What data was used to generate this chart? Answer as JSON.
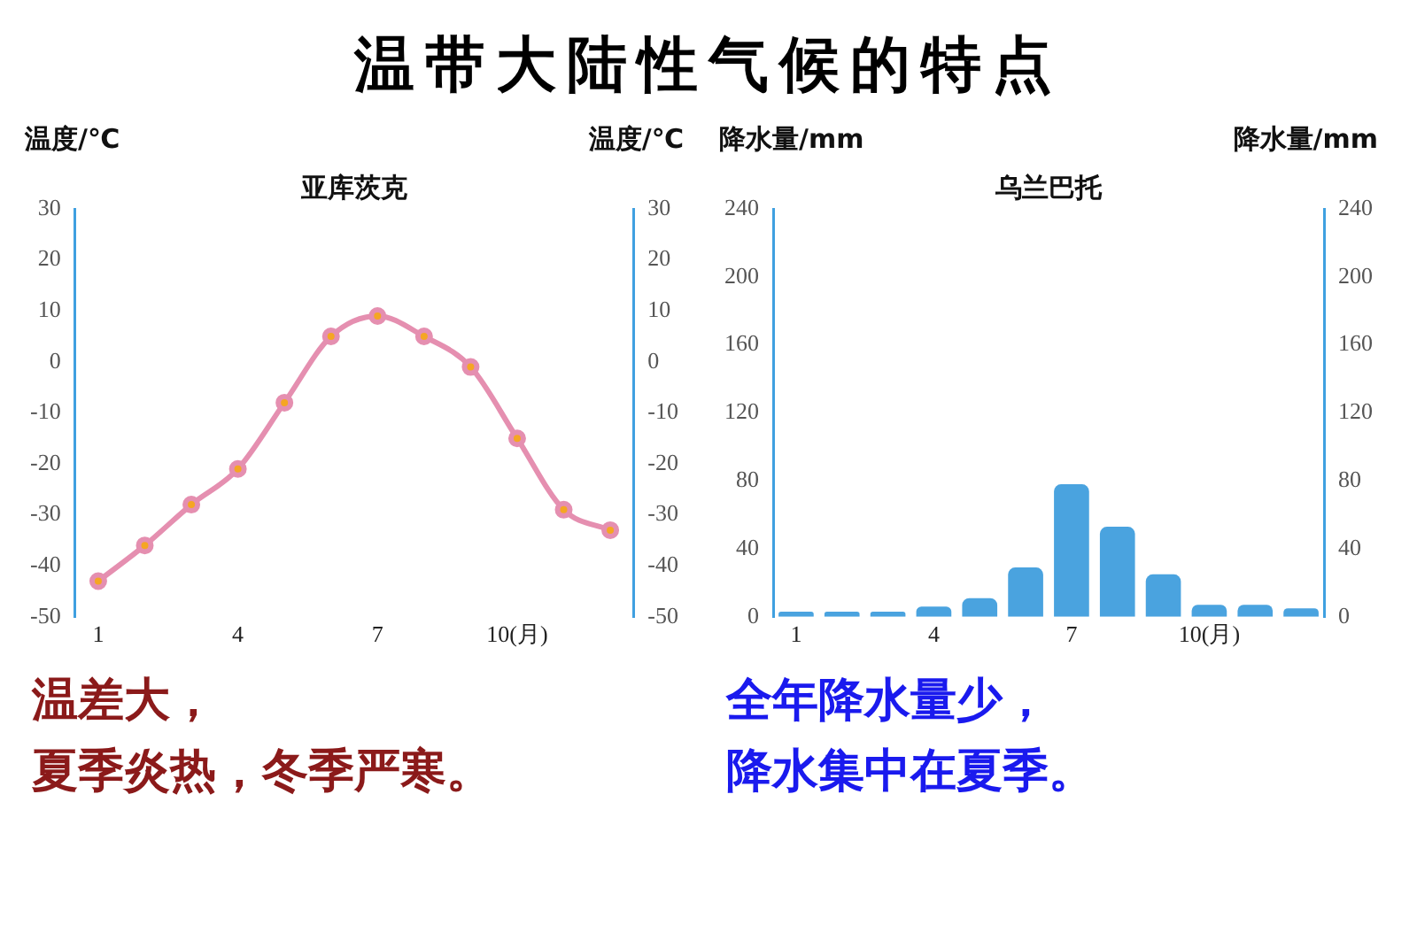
{
  "chart_data": [
    {
      "type": "line",
      "title": "温带大陆性气候的特点",
      "subtitle": "亚库茨克",
      "ylabel": "温度/℃",
      "y2label": "温度/℃",
      "categories": [
        "1",
        null,
        null,
        "4",
        null,
        null,
        "7",
        null,
        null,
        "10(月)",
        null,
        null
      ],
      "series": [
        {
          "color": "#e58fb0",
          "values": [
            -43,
            -36,
            -28,
            -21,
            -8,
            5,
            9,
            5,
            -1,
            -15,
            -29,
            -33
          ]
        }
      ],
      "ylim": [
        -50,
        30
      ],
      "yticks": [
        -50,
        -40,
        -30,
        -20,
        -10,
        0,
        10,
        20,
        30
      ],
      "y2lim": [
        -50,
        30
      ],
      "y2ticks": [
        -50,
        -40,
        -30,
        -20,
        -10,
        0,
        10,
        20,
        30
      ],
      "marker": "circle",
      "grid": false,
      "legend": false,
      "annotations": [
        "温差大，",
        "夏季炎热，冬季严寒。"
      ]
    },
    {
      "type": "bar",
      "subtitle": "乌兰巴托",
      "ylabel": "降水量/mm",
      "y2label": "降水量/mm",
      "categories": [
        "1",
        null,
        null,
        "4",
        null,
        null,
        "7",
        null,
        null,
        "10(月)",
        null,
        null
      ],
      "series": [
        {
          "color": "#4aa3df",
          "values": [
            3,
            3,
            3,
            6,
            11,
            29,
            78,
            53,
            25,
            7,
            7,
            5
          ]
        }
      ],
      "ylim": [
        0,
        240
      ],
      "yticks": [
        0,
        40,
        80,
        120,
        160,
        200,
        240
      ],
      "y2lim": [
        0,
        240
      ],
      "y2ticks": [
        0,
        40,
        80,
        120,
        160,
        200,
        240
      ],
      "grid": false,
      "legend": false,
      "annotations": [
        "全年降水量少，",
        "降水集中在夏季。"
      ]
    }
  ]
}
